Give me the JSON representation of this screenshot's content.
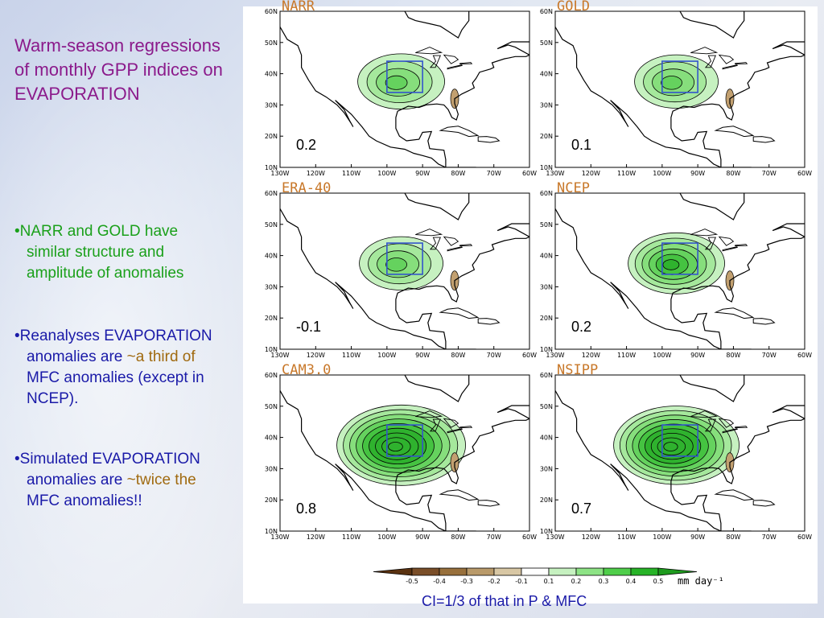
{
  "title": "Warm-season regressions\nof monthly GPP indices on\nEVAPORATION",
  "bullets": {
    "b1": [
      "•NARR and GOLD have",
      "similar structure and",
      "amplitude of anomalies"
    ],
    "b2": {
      "line1": "•Reanalyses EVAPORATION",
      "line2_pre": "anomalies are ",
      "line2_hl": "~a third of",
      "line3": "MFC anomalies (except in",
      "line4": "NCEP)."
    },
    "b3": {
      "line1": "•Simulated EVAPORATION",
      "line2_pre": "anomalies are ",
      "line2_hl": "~twice the",
      "line3": "MFC anomalies!!"
    }
  },
  "panels": [
    {
      "name": "NARR",
      "value": "0.2",
      "strength": 0.35
    },
    {
      "name": "GOLD",
      "value": "0.1",
      "strength": 0.3
    },
    {
      "name": "ERA-40",
      "value": "-0.1",
      "strength": 0.3
    },
    {
      "name": "NCEP",
      "value": "0.2",
      "strength": 0.5
    },
    {
      "name": "CAM3.0",
      "value": "0.8",
      "strength": 1.0
    },
    {
      "name": "NSIPP",
      "value": "0.7",
      "strength": 0.95
    }
  ],
  "axis": {
    "lat_labels": [
      "60N",
      "50N",
      "40N",
      "30N",
      "20N",
      "10N"
    ],
    "lon_labels": [
      "130W",
      "120W",
      "110W",
      "100W",
      "90W",
      "80W",
      "70W",
      "60W"
    ]
  },
  "colorbar": {
    "labels": [
      "-0.5",
      "-0.4",
      "-0.3",
      "-0.2",
      "-0.1",
      "0.1",
      "0.2",
      "0.3",
      "0.4",
      "0.5"
    ],
    "colors": [
      "#5a3210",
      "#7a4e28",
      "#98703c",
      "#b99a6a",
      "#d8c7a4",
      "#ffffff",
      "#c6f1c0",
      "#8de385",
      "#4fce4a",
      "#27b327",
      "#1e9a1e"
    ],
    "units": "mm day⁻¹"
  },
  "footer": "CI=1/3 of that in P & MFC",
  "colors": {
    "title": "#8b1a8b",
    "green_text": "#1aa01a",
    "blue_text": "#1a1aa8",
    "highlight": "#a06a10",
    "panel_label": "#c8782a",
    "box": "#3355cc"
  }
}
